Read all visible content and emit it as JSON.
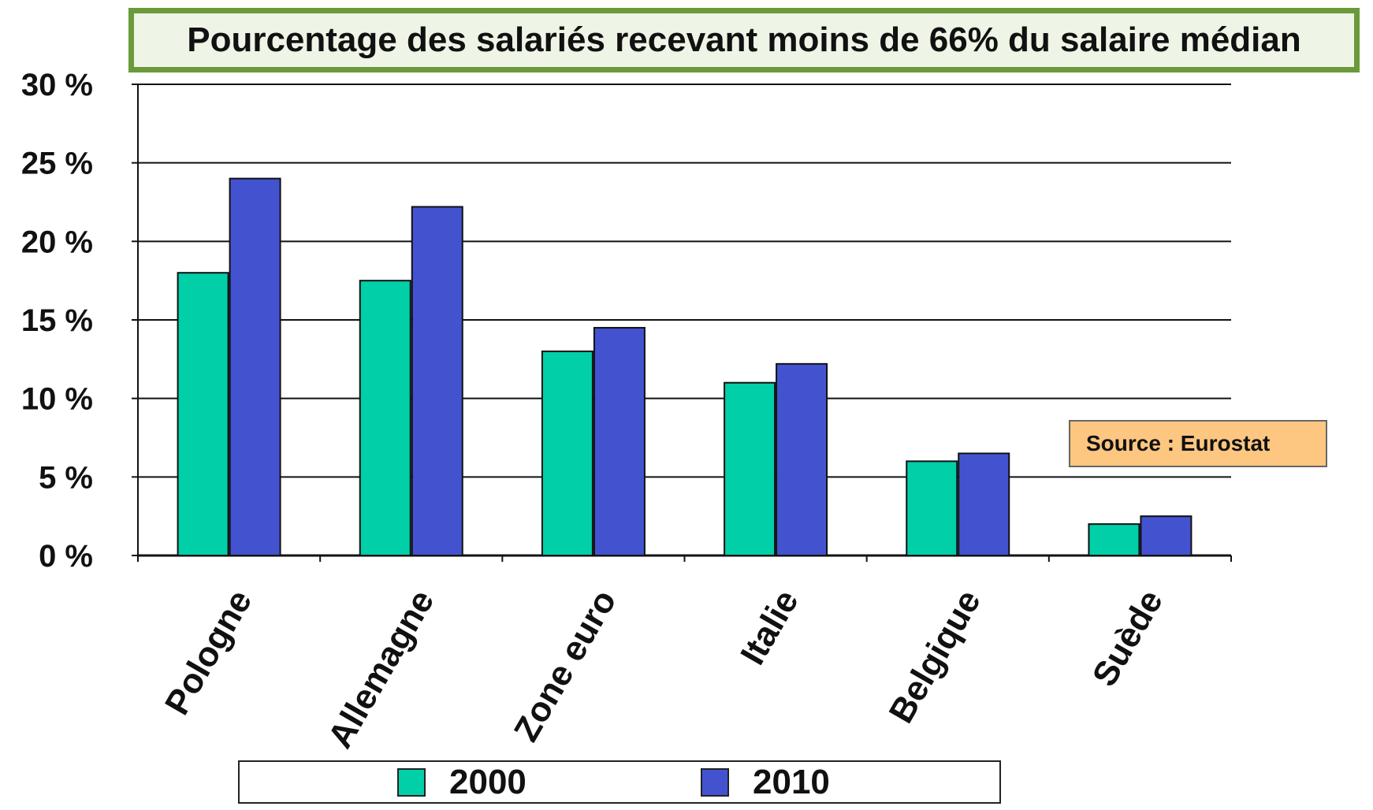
{
  "chart_data": {
    "type": "bar",
    "title": "Pourcentage des salariés recevant moins de 66% du salaire médian",
    "categories": [
      "Pologne",
      "Allemagne",
      "Zone euro",
      "Italie",
      "Belgique",
      "Suède"
    ],
    "series": [
      {
        "name": "2000",
        "color": "#00cfa8",
        "values": [
          18,
          17.5,
          13,
          11,
          6,
          2
        ]
      },
      {
        "name": "2010",
        "color": "#4353d0",
        "values": [
          24,
          22.2,
          14.5,
          12.2,
          6.5,
          2.5
        ]
      }
    ],
    "ylim": [
      0,
      30
    ],
    "yticks": [
      0,
      5,
      10,
      15,
      20,
      25,
      30
    ],
    "ytick_labels": [
      "0 %",
      "5 %",
      "10 %",
      "15 %",
      "20 %",
      "25 %",
      "30 %"
    ],
    "xlabel": "",
    "ylabel": "",
    "grid": true,
    "legend_position": "bottom",
    "annotation": "Source : Eurostat",
    "colors": {
      "title_border": "#6a9a3a",
      "title_background": "#eef4e6",
      "annotation_background": "#fdc681"
    }
  }
}
